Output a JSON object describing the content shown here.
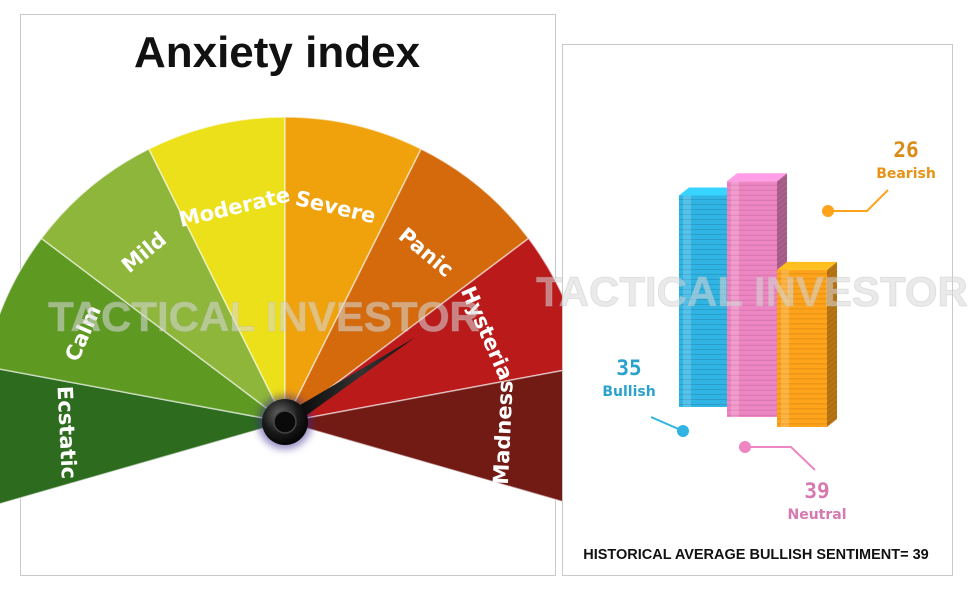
{
  "chart_data": [
    {
      "type": "gauge",
      "title": "Anxiety index",
      "segments": [
        {
          "label": "Ecstatic",
          "color": "#2d6b1e"
        },
        {
          "label": "Calm",
          "color": "#5e9a22"
        },
        {
          "label": "Mild",
          "color": "#8db63a"
        },
        {
          "label": "Moderate",
          "color": "#ece01a"
        },
        {
          "label": "Severe",
          "color": "#f0a20d"
        },
        {
          "label": "Panic",
          "color": "#d46a0c"
        },
        {
          "label": "Hysteria",
          "color": "#bb1a1a"
        },
        {
          "label": "Madness",
          "color": "#721a14"
        }
      ],
      "needle_segment": "Hysteria",
      "watermark": "TACTICAL INVESTOR"
    },
    {
      "type": "bar",
      "categories": [
        "Bullish",
        "Neutral",
        "Bearish"
      ],
      "values": [
        35,
        39,
        26
      ],
      "colors": [
        "#2fb4e3",
        "#ee86c4",
        "#ffa31a"
      ],
      "ylim": [
        0,
        45
      ],
      "grid": false,
      "legend": "none",
      "watermark": "TACTICAL INVESTOR",
      "footnote": "HISTORICAL AVERAGE BULLISH SENTIMENT= 39"
    }
  ]
}
